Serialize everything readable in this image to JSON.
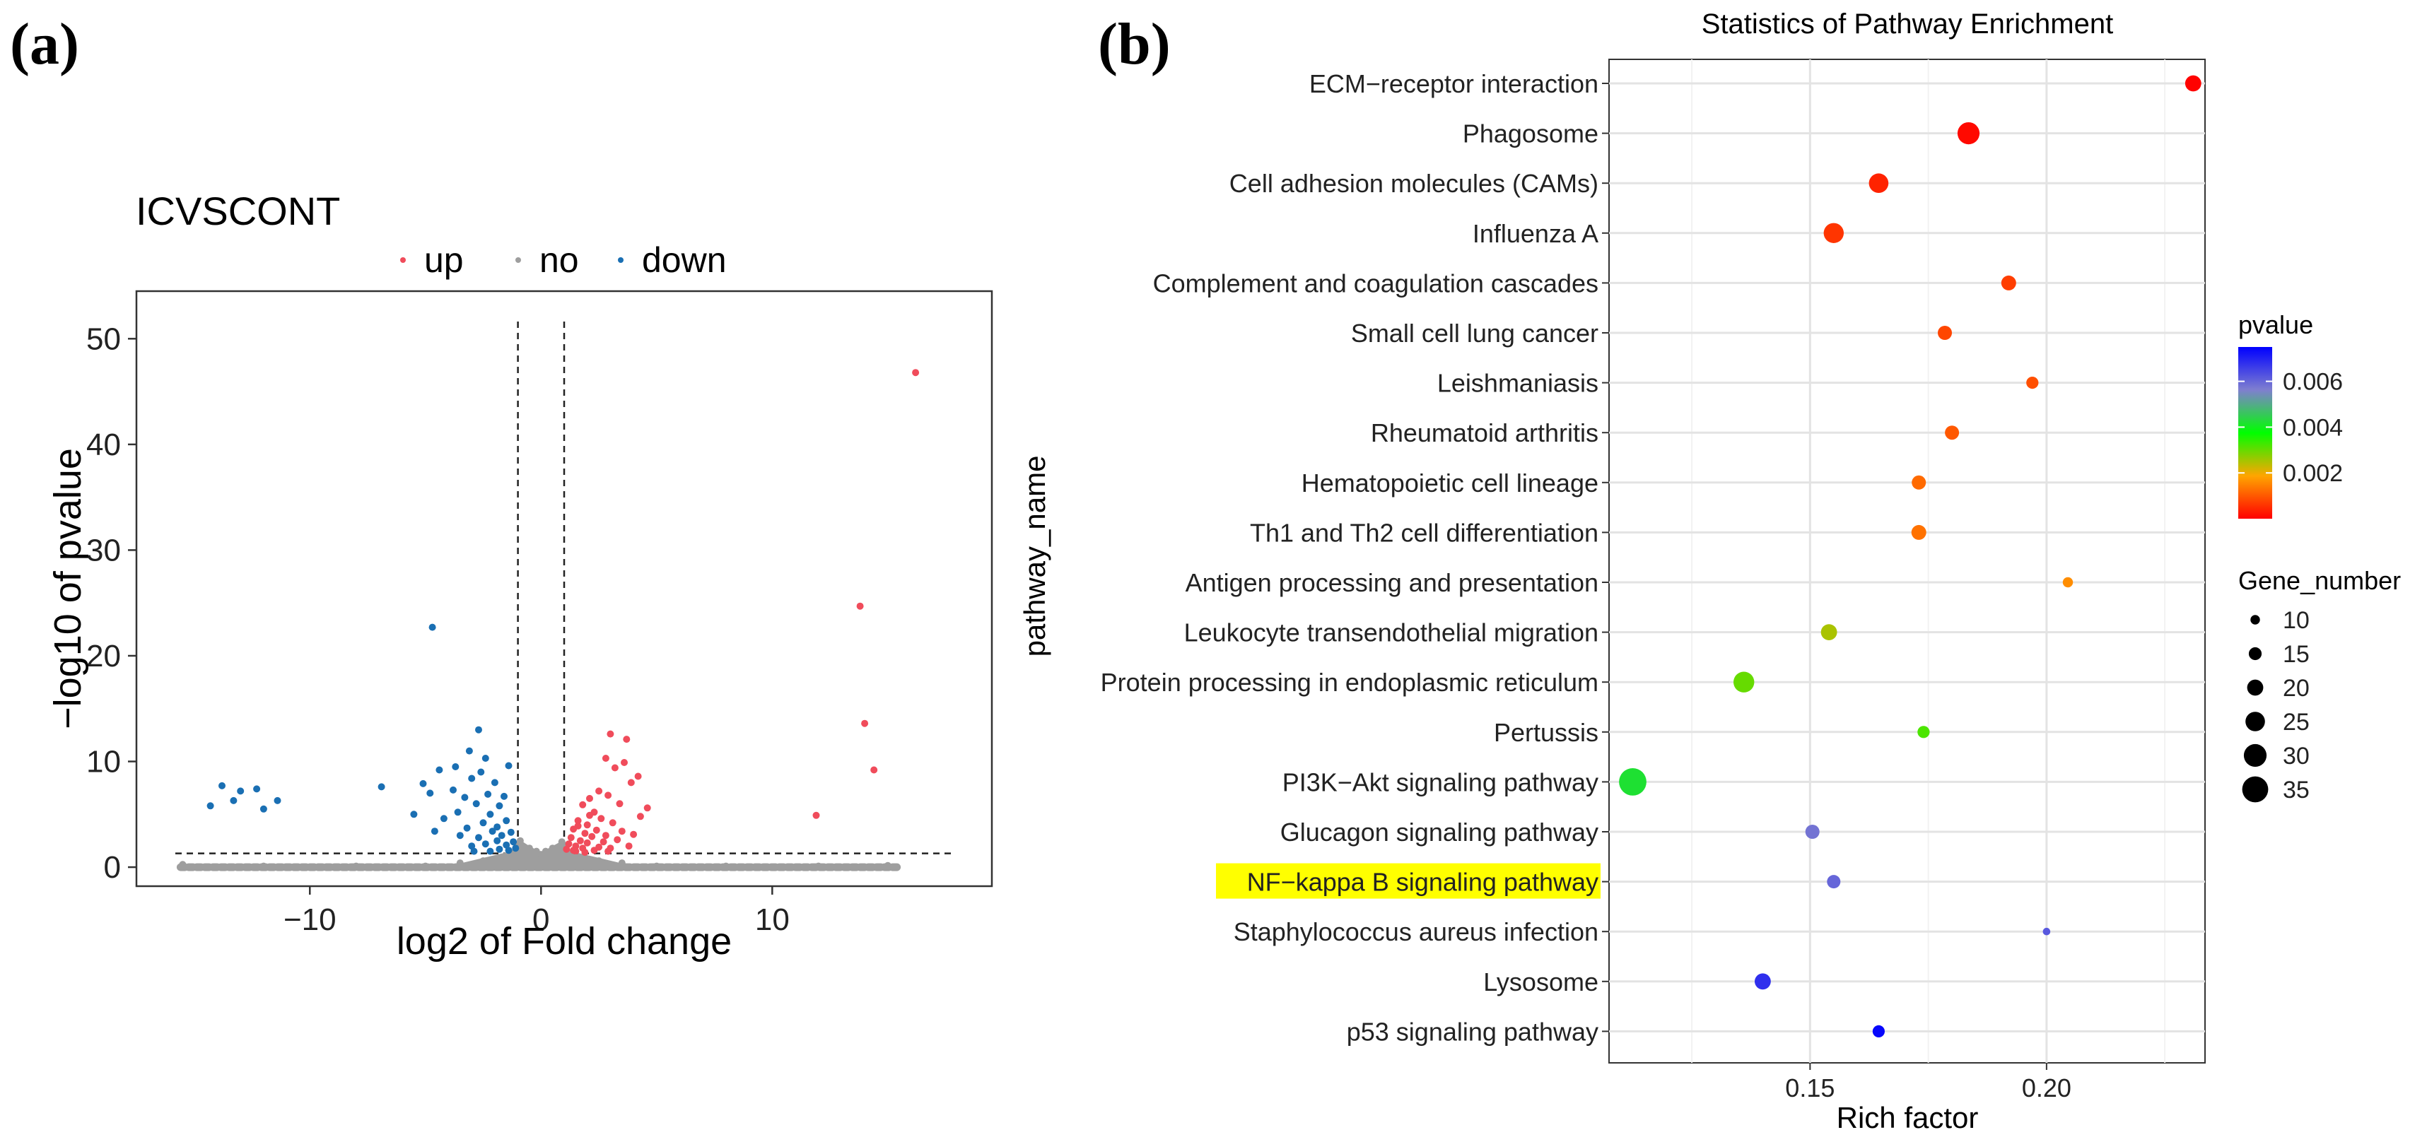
{
  "panels": {
    "a": "(a)",
    "b": "(b)"
  },
  "chart_data": [
    {
      "type": "scatter",
      "title": "ICVSCONT",
      "xlabel": "log2 of Fold change",
      "ylabel": "−log10 of pvalue",
      "xlim": [
        -17.5,
        19.5
      ],
      "ylim": [
        -1.8,
        54.5
      ],
      "x_ticks": [
        -10,
        0,
        10
      ],
      "x_tick_labels": [
        "−10",
        "0",
        "10"
      ],
      "y_ticks": [
        0,
        10,
        20,
        30,
        40,
        50
      ],
      "y_tick_labels": [
        "0",
        "10",
        "20",
        "30",
        "40",
        "50"
      ],
      "thresholds": {
        "log2fc": [
          -1,
          1
        ],
        "neg_log10_p": 1.3
      },
      "grid": false,
      "legend_position": "top",
      "legend": [
        {
          "name": "up",
          "color": "#f04c5b"
        },
        {
          "name": "no",
          "color": "#9e9e9e"
        },
        {
          "name": "down",
          "color": "#1a6fb3"
        }
      ],
      "series": [
        {
          "name": "up",
          "color": "#f04c5b",
          "points": [
            [
              16.2,
              46.8
            ],
            [
              13.8,
              24.7
            ],
            [
              14.0,
              13.6
            ],
            [
              14.4,
              9.2
            ],
            [
              11.9,
              4.9
            ],
            [
              3.0,
              12.6
            ],
            [
              3.7,
              12.1
            ],
            [
              2.8,
              10.3
            ],
            [
              3.6,
              9.9
            ],
            [
              3.2,
              9.4
            ],
            [
              4.2,
              8.6
            ],
            [
              3.9,
              8.0
            ],
            [
              4.6,
              5.6
            ],
            [
              4.3,
              4.8
            ],
            [
              2.5,
              7.2
            ],
            [
              2.1,
              6.5
            ],
            [
              2.9,
              6.8
            ],
            [
              1.8,
              5.9
            ],
            [
              2.3,
              5.2
            ],
            [
              3.4,
              6.0
            ],
            [
              1.6,
              4.4
            ],
            [
              2.0,
              4.0
            ],
            [
              2.6,
              4.6
            ],
            [
              3.1,
              4.2
            ],
            [
              1.4,
              3.6
            ],
            [
              1.9,
              3.2
            ],
            [
              2.4,
              3.5
            ],
            [
              2.8,
              3.0
            ],
            [
              3.5,
              3.4
            ],
            [
              1.3,
              2.8
            ],
            [
              1.7,
              2.5
            ],
            [
              2.2,
              2.9
            ],
            [
              2.7,
              2.4
            ],
            [
              3.3,
              2.6
            ],
            [
              4.0,
              3.1
            ],
            [
              1.2,
              2.2
            ],
            [
              1.5,
              2.0
            ],
            [
              2.0,
              2.3
            ],
            [
              2.5,
              1.9
            ],
            [
              3.0,
              1.8
            ],
            [
              1.1,
              1.7
            ],
            [
              1.4,
              1.6
            ],
            [
              1.8,
              1.8
            ],
            [
              2.3,
              1.6
            ],
            [
              2.9,
              1.5
            ],
            [
              3.8,
              2.0
            ],
            [
              1.6,
              3.9
            ],
            [
              2.1,
              4.9
            ],
            [
              1.5,
              1.5
            ],
            [
              1.9,
              1.4
            ]
          ]
        },
        {
          "name": "no",
          "color": "#9e9e9e",
          "points": [
            [
              -15.5,
              0.25
            ],
            [
              15.0,
              0.15
            ],
            [
              -12.0,
              0.1
            ],
            [
              -8.0,
              0.1
            ],
            [
              -5.0,
              0.1
            ],
            [
              5.0,
              0.1
            ],
            [
              8.0,
              0.1
            ],
            [
              12.0,
              0.1
            ],
            [
              -0.9,
              2.5
            ],
            [
              -0.5,
              1.8
            ],
            [
              0.0,
              1.2
            ],
            [
              0.5,
              1.8
            ],
            [
              0.9,
              2.4
            ],
            [
              -0.7,
              1.2
            ],
            [
              0.7,
              1.2
            ],
            [
              -0.3,
              0.8
            ],
            [
              0.3,
              0.8
            ],
            [
              -1.5,
              0.9
            ],
            [
              1.5,
              0.9
            ],
            [
              -2.5,
              0.6
            ],
            [
              2.5,
              0.6
            ],
            [
              -3.5,
              0.4
            ],
            [
              3.5,
              0.4
            ],
            [
              -0.2,
              1.5
            ],
            [
              0.2,
              1.5
            ]
          ]
        },
        {
          "name": "down",
          "color": "#1a6fb3",
          "points": [
            [
              -4.7,
              22.7
            ],
            [
              -13.8,
              7.7
            ],
            [
              -13.0,
              7.2
            ],
            [
              -12.3,
              7.4
            ],
            [
              -11.4,
              6.3
            ],
            [
              -12.0,
              5.5
            ],
            [
              -13.3,
              6.3
            ],
            [
              -14.3,
              5.8
            ],
            [
              -2.7,
              13.0
            ],
            [
              -3.1,
              11.0
            ],
            [
              -3.7,
              9.5
            ],
            [
              -4.4,
              9.2
            ],
            [
              -5.1,
              7.9
            ],
            [
              -6.9,
              7.6
            ],
            [
              -4.8,
              7.0
            ],
            [
              -3.8,
              7.3
            ],
            [
              -3.3,
              6.6
            ],
            [
              -2.8,
              6.0
            ],
            [
              -2.3,
              6.9
            ],
            [
              -3.0,
              8.4
            ],
            [
              -2.0,
              8.0
            ],
            [
              -2.6,
              9.0
            ],
            [
              -1.8,
              5.8
            ],
            [
              -2.2,
              5.0
            ],
            [
              -3.6,
              5.2
            ],
            [
              -4.2,
              4.6
            ],
            [
              -1.5,
              4.4
            ],
            [
              -1.9,
              3.8
            ],
            [
              -2.5,
              4.2
            ],
            [
              -3.2,
              3.7
            ],
            [
              -1.3,
              3.3
            ],
            [
              -1.7,
              3.0
            ],
            [
              -2.1,
              3.4
            ],
            [
              -2.7,
              2.8
            ],
            [
              -3.5,
              3.0
            ],
            [
              -1.2,
              2.4
            ],
            [
              -1.5,
              2.1
            ],
            [
              -1.9,
              2.5
            ],
            [
              -2.4,
              2.2
            ],
            [
              -3.0,
              2.0
            ],
            [
              -1.1,
              1.8
            ],
            [
              -1.4,
              1.6
            ],
            [
              -1.8,
              1.7
            ],
            [
              -2.2,
              1.5
            ],
            [
              -2.9,
              1.5
            ],
            [
              -4.6,
              3.4
            ],
            [
              -5.5,
              5.0
            ],
            [
              -1.6,
              6.7
            ],
            [
              -2.4,
              10.3
            ],
            [
              -1.4,
              9.6
            ]
          ]
        }
      ]
    },
    {
      "type": "scatter",
      "title": "Statistics of Pathway Enrichment",
      "xlabel": "Rich factor",
      "ylabel": "pathway_name",
      "xlim": [
        0.1075,
        0.2335
      ],
      "x_ticks": [
        0.15,
        0.2
      ],
      "x_tick_labels": [
        "0.15",
        "0.20"
      ],
      "grid": true,
      "highlighted_category": "NF−kappa B signaling pathway",
      "highlight_color": "#ffff00",
      "color_scale": {
        "title": "pvalue",
        "ticks": [
          0.002,
          0.004,
          0.006
        ],
        "tick_labels": [
          "0.002",
          "0.004",
          "0.006"
        ],
        "range": [
          0,
          0.0075
        ],
        "colors": [
          "#ff0000",
          "#ffa500",
          "#00ff00",
          "#7f7fcf",
          "#0000ff"
        ]
      },
      "size_legend": {
        "title": "Gene_number",
        "values": [
          10,
          15,
          20,
          25,
          30,
          35
        ],
        "labels": [
          "10",
          "15",
          "20",
          "25",
          "30",
          "35"
        ]
      },
      "points": [
        {
          "pathway": "ECM−receptor interaction",
          "rich_factor": 0.231,
          "pvalue": 2e-05,
          "gene_number": 20
        },
        {
          "pathway": "Phagosome",
          "rich_factor": 0.1835,
          "pvalue": 0.0001,
          "gene_number": 29
        },
        {
          "pathway": "Cell adhesion molecules (CAMs)",
          "rich_factor": 0.1645,
          "pvalue": 0.0004,
          "gene_number": 25
        },
        {
          "pathway": "Influenza A",
          "rich_factor": 0.155,
          "pvalue": 0.0006,
          "gene_number": 26
        },
        {
          "pathway": "Complement and coagulation cascades",
          "rich_factor": 0.192,
          "pvalue": 0.0007,
          "gene_number": 18
        },
        {
          "pathway": "Small cell lung cancer",
          "rich_factor": 0.1785,
          "pvalue": 0.0008,
          "gene_number": 17
        },
        {
          "pathway": "Leishmaniasis",
          "rich_factor": 0.197,
          "pvalue": 0.0009,
          "gene_number": 14
        },
        {
          "pathway": "Rheumatoid arthritis",
          "rich_factor": 0.18,
          "pvalue": 0.001,
          "gene_number": 17
        },
        {
          "pathway": "Hematopoietic cell lineage",
          "rich_factor": 0.173,
          "pvalue": 0.0012,
          "gene_number": 17
        },
        {
          "pathway": "Th1 and Th2 cell differentiation",
          "rich_factor": 0.173,
          "pvalue": 0.0013,
          "gene_number": 18
        },
        {
          "pathway": "Antigen processing and presentation",
          "rich_factor": 0.2045,
          "pvalue": 0.0016,
          "gene_number": 11
        },
        {
          "pathway": "Leukocyte transendothelial migration",
          "rich_factor": 0.154,
          "pvalue": 0.0025,
          "gene_number": 20
        },
        {
          "pathway": "Protein processing in endoplasmic reticulum",
          "rich_factor": 0.136,
          "pvalue": 0.003,
          "gene_number": 27
        },
        {
          "pathway": "Pertussis",
          "rich_factor": 0.174,
          "pvalue": 0.0032,
          "gene_number": 14
        },
        {
          "pathway": "PI3K−Akt signaling pathway",
          "rich_factor": 0.1125,
          "pvalue": 0.0042,
          "gene_number": 37
        },
        {
          "pathway": "Glucagon signaling pathway",
          "rich_factor": 0.1505,
          "pvalue": 0.0058,
          "gene_number": 17
        },
        {
          "pathway": "NF−kappa B signaling pathway",
          "rich_factor": 0.155,
          "pvalue": 0.006,
          "gene_number": 16
        },
        {
          "pathway": "Staphylococcus aureus infection",
          "rich_factor": 0.2,
          "pvalue": 0.0062,
          "gene_number": 7
        },
        {
          "pathway": "Lysosome",
          "rich_factor": 0.14,
          "pvalue": 0.0068,
          "gene_number": 20
        },
        {
          "pathway": "p53 signaling pathway",
          "rich_factor": 0.1645,
          "pvalue": 0.0074,
          "gene_number": 14
        }
      ]
    }
  ]
}
